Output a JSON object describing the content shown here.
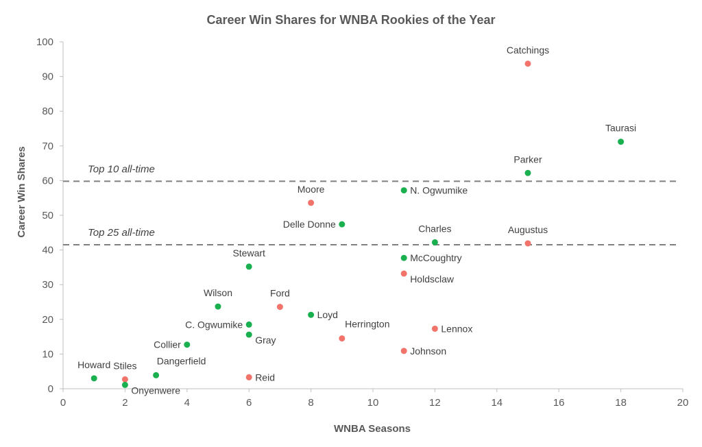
{
  "chart_data": {
    "type": "scatter",
    "title": "Career Win Shares for WNBA Rookies of the Year",
    "xlabel": "WNBA Seasons",
    "ylabel": "Career Win Shares",
    "xlim": [
      0,
      20
    ],
    "ylim": [
      0,
      100
    ],
    "x_ticks": [
      0,
      2,
      4,
      6,
      8,
      10,
      12,
      14,
      16,
      18,
      20
    ],
    "y_ticks": [
      0,
      10,
      20,
      30,
      40,
      50,
      60,
      70,
      80,
      90,
      100
    ],
    "grid": false,
    "colors": {
      "green": "#1aaf4f",
      "red": "#f1736a",
      "reference": "#7f7f7f",
      "axis": "#bfbfbf"
    },
    "reference_lines": [
      {
        "label": "Top 10 all-time",
        "y": 59.8
      },
      {
        "label": "Top 25 all-time",
        "y": 41.5
      }
    ],
    "points": [
      {
        "name": "Catchings",
        "x": 15,
        "y": 93.7,
        "color": "red",
        "label_pos": "above"
      },
      {
        "name": "Taurasi",
        "x": 18,
        "y": 71.2,
        "color": "green",
        "label_pos": "above"
      },
      {
        "name": "Parker",
        "x": 15,
        "y": 62.2,
        "color": "green",
        "label_pos": "above"
      },
      {
        "name": "N. Ogwumike",
        "x": 11,
        "y": 57.2,
        "color": "green",
        "label_pos": "right"
      },
      {
        "name": "Moore",
        "x": 8,
        "y": 53.6,
        "color": "red",
        "label_pos": "above"
      },
      {
        "name": "Delle Donne",
        "x": 9,
        "y": 47.4,
        "color": "green",
        "label_pos": "left"
      },
      {
        "name": "Charles",
        "x": 12,
        "y": 42.2,
        "color": "green",
        "label_pos": "above"
      },
      {
        "name": "Augustus",
        "x": 15,
        "y": 41.9,
        "color": "red",
        "label_pos": "above"
      },
      {
        "name": "McCoughtry",
        "x": 11,
        "y": 37.7,
        "color": "green",
        "label_pos": "right"
      },
      {
        "name": "Stewart",
        "x": 6,
        "y": 35.2,
        "color": "green",
        "label_pos": "above"
      },
      {
        "name": "Holdsclaw",
        "x": 11,
        "y": 33.2,
        "color": "red",
        "label_pos": "below-right"
      },
      {
        "name": "Wilson",
        "x": 5,
        "y": 23.7,
        "color": "green",
        "label_pos": "above"
      },
      {
        "name": "Ford",
        "x": 7,
        "y": 23.6,
        "color": "red",
        "label_pos": "above"
      },
      {
        "name": "Loyd",
        "x": 8,
        "y": 21.3,
        "color": "green",
        "label_pos": "right"
      },
      {
        "name": "C. Ogwumike",
        "x": 6,
        "y": 18.5,
        "color": "green",
        "label_pos": "left"
      },
      {
        "name": "Lennox",
        "x": 12,
        "y": 17.3,
        "color": "red",
        "label_pos": "right"
      },
      {
        "name": "Gray",
        "x": 6,
        "y": 15.6,
        "color": "green",
        "label_pos": "below-right"
      },
      {
        "name": "Herrington",
        "x": 9,
        "y": 14.5,
        "color": "red",
        "label_pos": "above-right"
      },
      {
        "name": "Collier",
        "x": 4,
        "y": 12.7,
        "color": "green",
        "label_pos": "left"
      },
      {
        "name": "Johnson",
        "x": 11,
        "y": 10.9,
        "color": "red",
        "label_pos": "right"
      },
      {
        "name": "Dangerfield",
        "x": 3,
        "y": 3.9,
        "color": "green",
        "label_pos": "above-right"
      },
      {
        "name": "Reid",
        "x": 6,
        "y": 3.3,
        "color": "red",
        "label_pos": "right"
      },
      {
        "name": "Howard",
        "x": 1,
        "y": 3.0,
        "color": "green",
        "label_pos": "above"
      },
      {
        "name": "Stiles",
        "x": 2,
        "y": 2.7,
        "color": "red",
        "label_pos": "above"
      },
      {
        "name": "Onyenwere",
        "x": 2,
        "y": 1.1,
        "color": "green",
        "label_pos": "below-right"
      }
    ]
  }
}
